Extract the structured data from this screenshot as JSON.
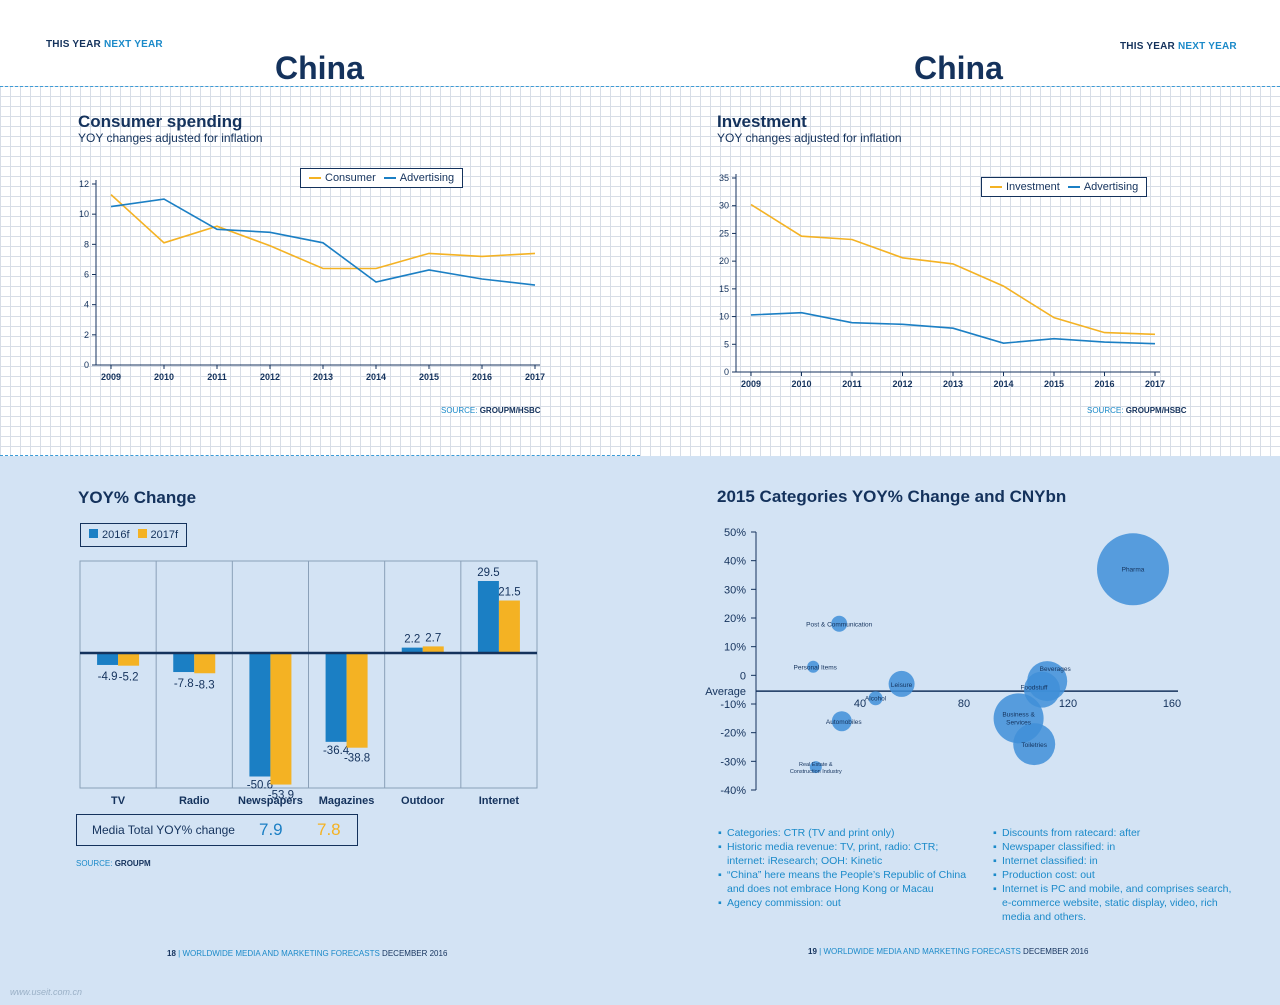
{
  "header": {
    "left": {
      "this_year": "THIS YEAR",
      "next_year": "NEXT YEAR",
      "country": "China"
    },
    "right": {
      "this_year": "THIS YEAR",
      "next_year": "NEXT YEAR",
      "country": "China"
    }
  },
  "consumer": {
    "title": "Consumer spending",
    "subtitle": "YOY changes adjusted for inflation",
    "source_label": "SOURCE:",
    "source_value": "GROUPM/HSBC"
  },
  "investment": {
    "title": "Investment",
    "subtitle": "YOY changes adjusted for inflation",
    "source_label": "SOURCE:",
    "source_value": "GROUPM/HSBC"
  },
  "yoy": {
    "title": "YOY% Change",
    "media_total_label": "Media Total YOY% change",
    "media_total_2016": "7.9",
    "media_total_2017": "7.8",
    "source_label": "SOURCE:",
    "source_value": "GROUPM"
  },
  "bubble_title": "2015 Categories YOY% Change and CNYbn",
  "notes_left": [
    "Categories: CTR (TV and print only)",
    "Historic media revenue: TV, print, radio: CTR; internet: iResearch; OOH: Kinetic",
    "“China” here means the People’s Republic of China and does not embrace Hong Kong or Macau",
    "Agency commission: out"
  ],
  "notes_right": [
    "Discounts from ratecard: after",
    "Newspaper classified: in",
    "Internet classified: in",
    "Production cost: out",
    "Internet is PC and mobile, and comprises search, e-commerce website, static display, video, rich media and others."
  ],
  "footer_left": {
    "page": "18",
    "sep": "|",
    "pub": "WORLDWIDE MEDIA AND MARKETING FORECASTS",
    "date": "DECEMBER 2016"
  },
  "footer_right": {
    "page": "19",
    "sep": "|",
    "pub": "WORLDWIDE MEDIA AND MARKETING FORECASTS",
    "date": "DECEMBER 2016"
  },
  "watermark": "www.useit.com.cn",
  "colors": {
    "navy": "#14325c",
    "blue": "#1b7fc4",
    "orange": "#f4b223",
    "bubble": "#3f8fd8",
    "bg_bottom": "#d3e3f4"
  },
  "chart_data": [
    {
      "type": "line",
      "x": [
        "2009",
        "2010",
        "2011",
        "2012",
        "2013",
        "2014",
        "2015",
        "2016",
        "2017"
      ],
      "ylim": [
        0,
        12
      ],
      "yticks": [
        "0",
        "2",
        "4",
        "6",
        "8",
        "10",
        "12"
      ],
      "series": [
        {
          "name": "Consumer",
          "color": "#f4b223",
          "values": [
            11.3,
            8.1,
            9.2,
            7.9,
            6.4,
            6.4,
            7.4,
            7.2,
            7.4
          ]
        },
        {
          "name": "Advertising",
          "color": "#1b7fc4",
          "values": [
            10.5,
            11.0,
            9.0,
            8.8,
            8.1,
            5.5,
            6.3,
            5.7,
            5.3
          ]
        }
      ]
    },
    {
      "type": "line",
      "x": [
        "2009",
        "2010",
        "2011",
        "2012",
        "2013",
        "2014",
        "2015",
        "2016",
        "2017"
      ],
      "ylim": [
        0,
        35
      ],
      "yticks": [
        "0",
        "5",
        "10",
        "15",
        "20",
        "25",
        "30",
        "35"
      ],
      "series": [
        {
          "name": "Investment",
          "color": "#f4b223",
          "values": [
            30.2,
            24.5,
            23.9,
            20.6,
            19.5,
            15.5,
            9.8,
            7.1,
            6.8
          ]
        },
        {
          "name": "Advertising",
          "color": "#1b7fc4",
          "values": [
            10.3,
            10.7,
            8.9,
            8.6,
            7.9,
            5.2,
            6.0,
            5.4,
            5.1
          ]
        }
      ]
    },
    {
      "type": "bar",
      "categories": [
        "TV",
        "Radio",
        "Newspapers",
        "Magazines",
        "Outdoor",
        "Internet"
      ],
      "ylim": [
        -55,
        35
      ],
      "series": [
        {
          "name": "2016f",
          "color": "#1b7fc4",
          "values": [
            -4.9,
            -7.8,
            -50.6,
            -36.4,
            2.2,
            29.5
          ],
          "labels": [
            "-4.9",
            "-7.8",
            "-50.6",
            "-36.4",
            "2.2",
            "29.5"
          ]
        },
        {
          "name": "2017f",
          "color": "#f4b223",
          "values": [
            -5.2,
            -8.3,
            -53.9,
            -38.8,
            2.7,
            21.5
          ],
          "labels": [
            "-5.2",
            "-8.3",
            "-53.9",
            "-38.8",
            "2.7",
            "21.5"
          ]
        }
      ]
    },
    {
      "type": "scatter",
      "xlim": [
        0,
        160
      ],
      "ylim": [
        -40,
        50
      ],
      "xticks": [
        "40",
        "80",
        "120",
        "160"
      ],
      "yticks": [
        "50%",
        "40%",
        "30%",
        "20%",
        "10%",
        "0",
        "-10%",
        "-20%",
        "-30%",
        "-40%"
      ],
      "average_label": "Average",
      "average_y": -5.5,
      "points": [
        {
          "label": "Pharma",
          "x": 145,
          "y": 37,
          "r": 36
        },
        {
          "label": "Post & Communication",
          "x": 32,
          "y": 18,
          "r": 8
        },
        {
          "label": "Personal Items",
          "x": 22,
          "y": 3,
          "r": 6
        },
        {
          "label": "Leisure",
          "x": 56,
          "y": -3,
          "r": 13
        },
        {
          "label": "Alcohol",
          "x": 46,
          "y": -8,
          "r": 7
        },
        {
          "label": "Automobiles",
          "x": 33,
          "y": -16,
          "r": 10
        },
        {
          "label": "Beverages",
          "x": 112,
          "y": -2,
          "r": 20
        },
        {
          "label": "Foodstuff",
          "x": 110,
          "y": -5,
          "r": 18
        },
        {
          "label": "Business & Services",
          "x": 101,
          "y": -15,
          "r": 25
        },
        {
          "label": "Toiletries",
          "x": 107,
          "y": -24,
          "r": 21
        },
        {
          "label": "Real Estate & Construction Industry",
          "x": 23,
          "y": -32,
          "r": 6
        }
      ]
    }
  ]
}
